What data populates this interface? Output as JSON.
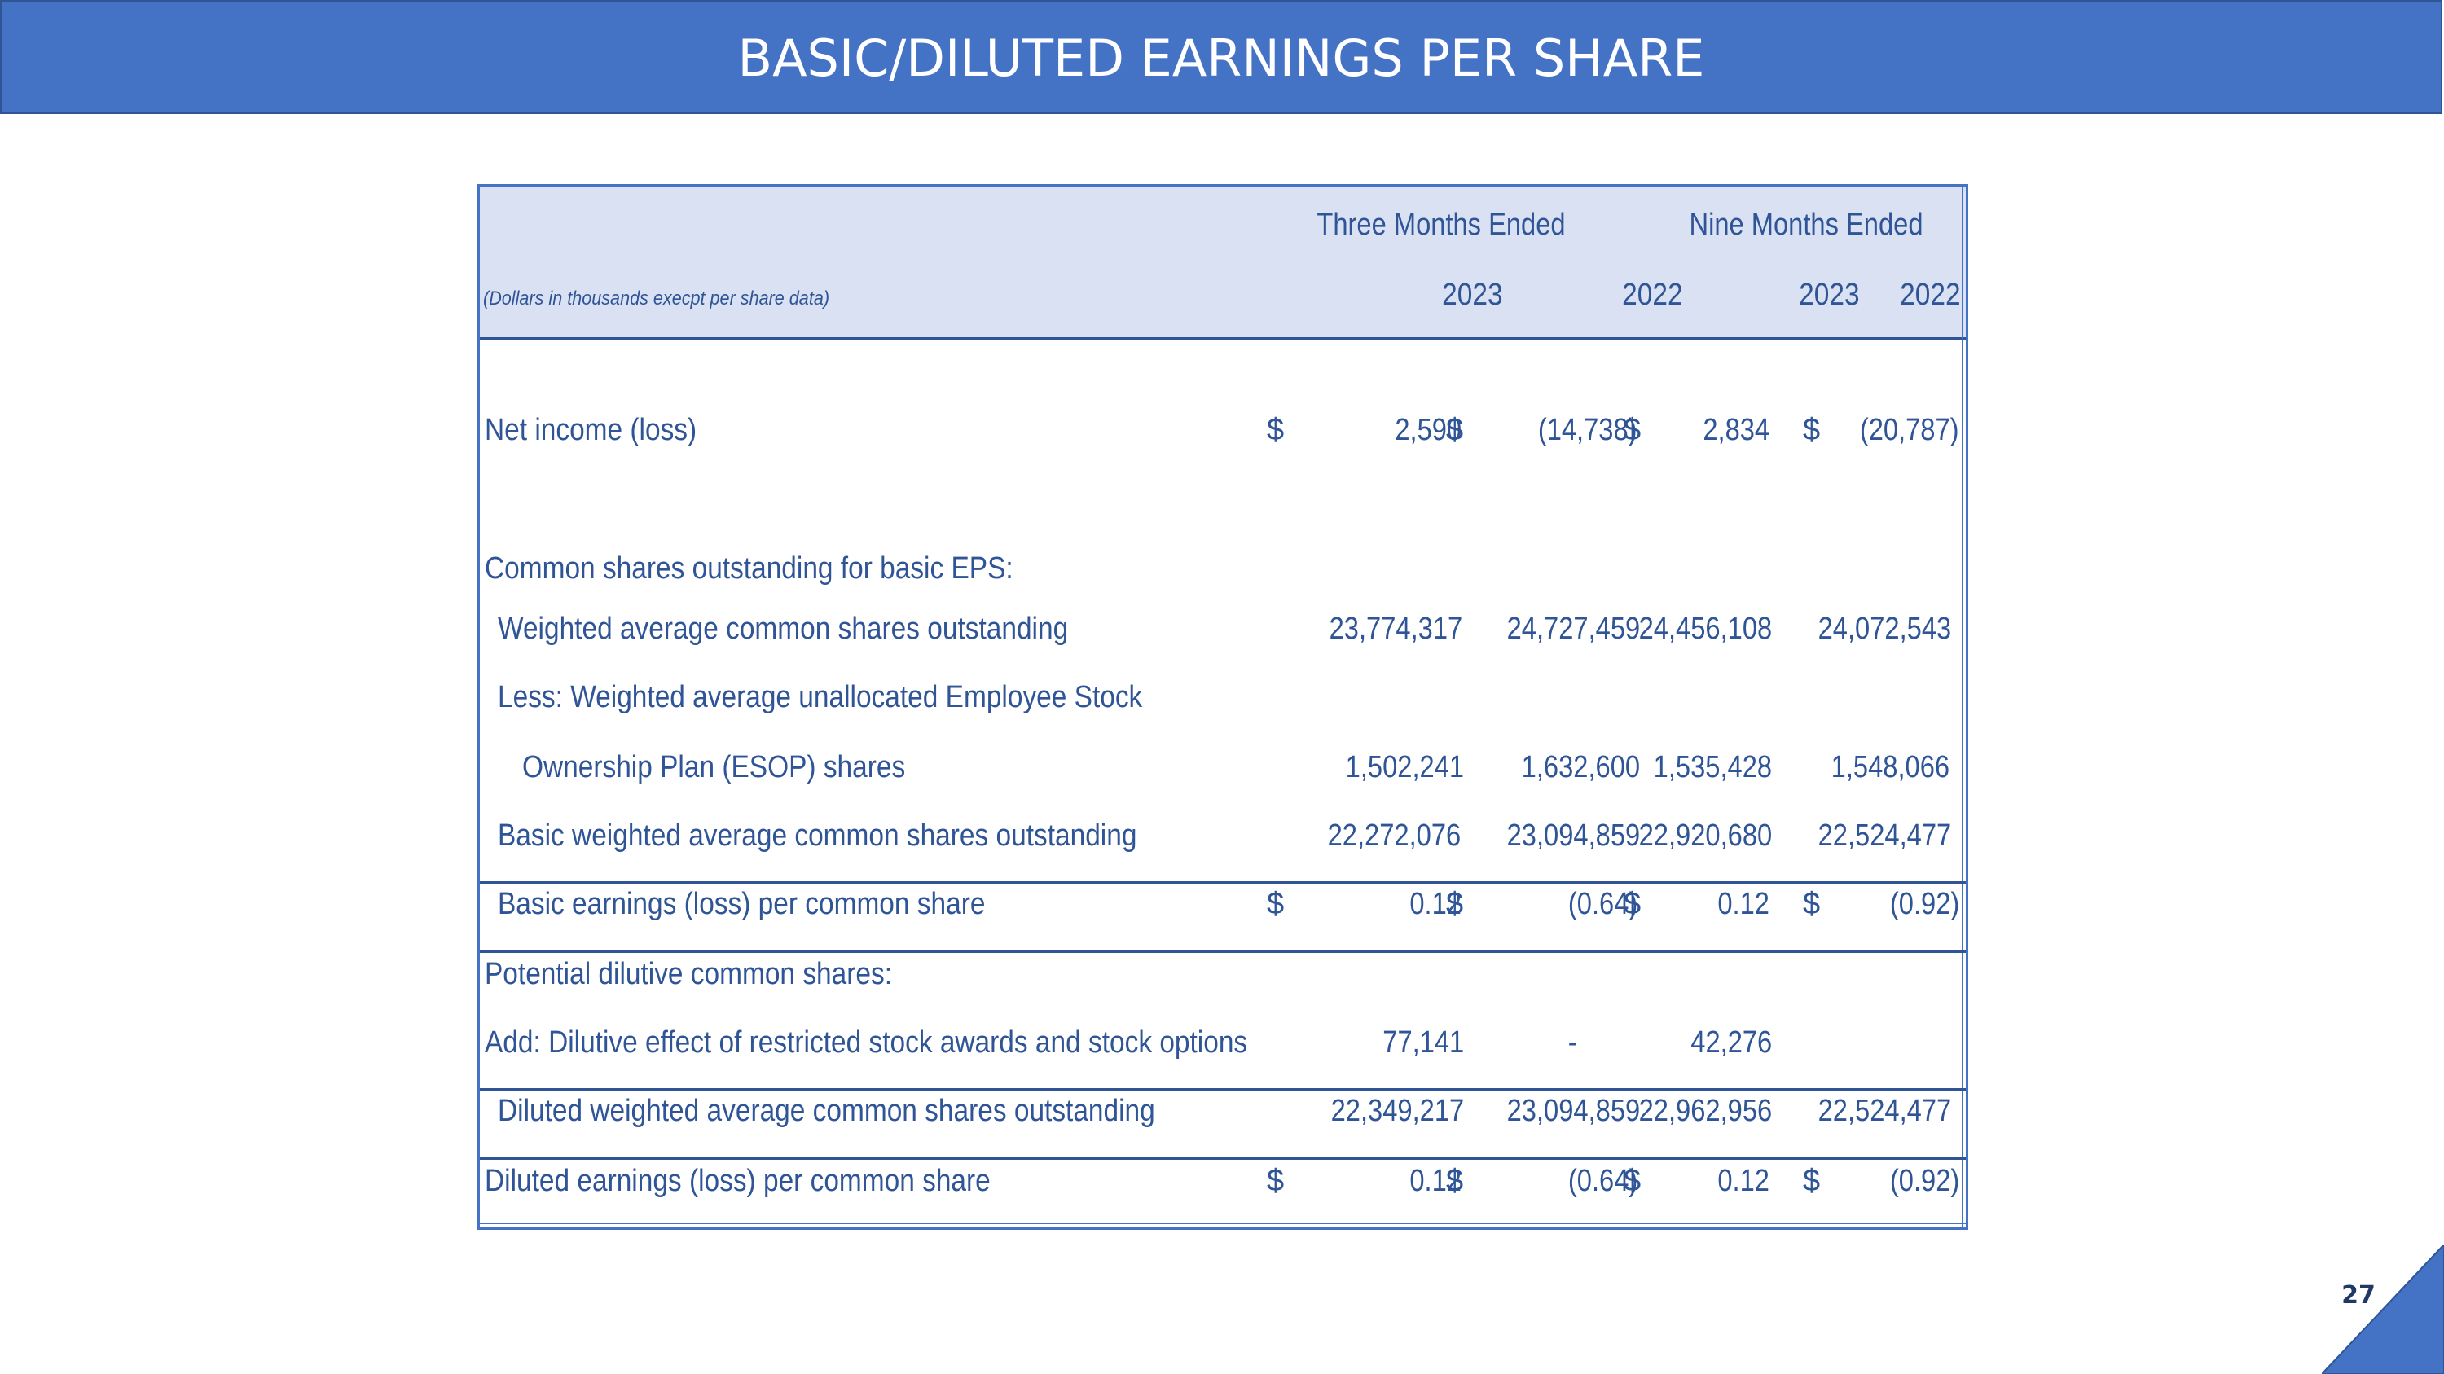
{
  "slide": {
    "title": "BASIC/DILUTED EARNINGS PER SHARE",
    "page_number": "27",
    "accent_color": "#4472c4",
    "text_color": "#2f5597",
    "header_fill": "#d9e1f2"
  },
  "table": {
    "note": "(Dollars in thousands execpt per share data)",
    "period_headers": [
      "Three Months Ended",
      "Nine Months Ended"
    ],
    "years": [
      "2023",
      "2022",
      "2023",
      "2022"
    ],
    "rows": [
      {
        "label": "Net income (loss)",
        "dollar": "$",
        "values": [
          "2,590",
          "(14,738)",
          "2,834",
          "(20,787)"
        ]
      },
      {
        "label": "Common shares outstanding for basic EPS:",
        "dollar": "",
        "values": [
          "",
          "",
          "",
          ""
        ]
      },
      {
        "label": "Weighted average common shares outstanding",
        "dollar": "",
        "values": [
          "23,774,317",
          "24,727,459",
          "24,456,108",
          "24,072,543"
        ]
      },
      {
        "label": "Less: Weighted average unallocated Employee Stock",
        "dollar": "",
        "values": [
          "",
          "",
          "",
          ""
        ]
      },
      {
        "label": "Ownership Plan (ESOP) shares",
        "dollar": "",
        "values": [
          "1,502,241",
          "1,632,600",
          "1,535,428",
          "1,548,066"
        ]
      },
      {
        "label": "Basic weighted average common shares outstanding",
        "dollar": "",
        "values": [
          "22,272,076",
          "23,094,859",
          "22,920,680",
          "22,524,477"
        ]
      },
      {
        "label": "Basic earnings (loss) per common share",
        "dollar": "$",
        "values": [
          "0.12",
          "(0.64)",
          "0.12",
          "(0.92)"
        ]
      },
      {
        "label": "Potential dilutive common shares:",
        "dollar": "",
        "values": [
          "",
          "",
          "",
          ""
        ]
      },
      {
        "label": "Add: Dilutive effect of restricted stock awards and stock options",
        "dollar": "",
        "values": [
          "77,141",
          "-",
          "42,276",
          ""
        ]
      },
      {
        "label": "Diluted weighted average common shares outstanding",
        "dollar": "",
        "values": [
          "22,349,217",
          "23,094,859",
          "22,962,956",
          "22,524,477"
        ]
      },
      {
        "label": "Diluted earnings (loss) per common share",
        "dollar": "$",
        "values": [
          "0.12",
          "(0.64)",
          "0.12",
          "(0.92)"
        ]
      }
    ]
  }
}
